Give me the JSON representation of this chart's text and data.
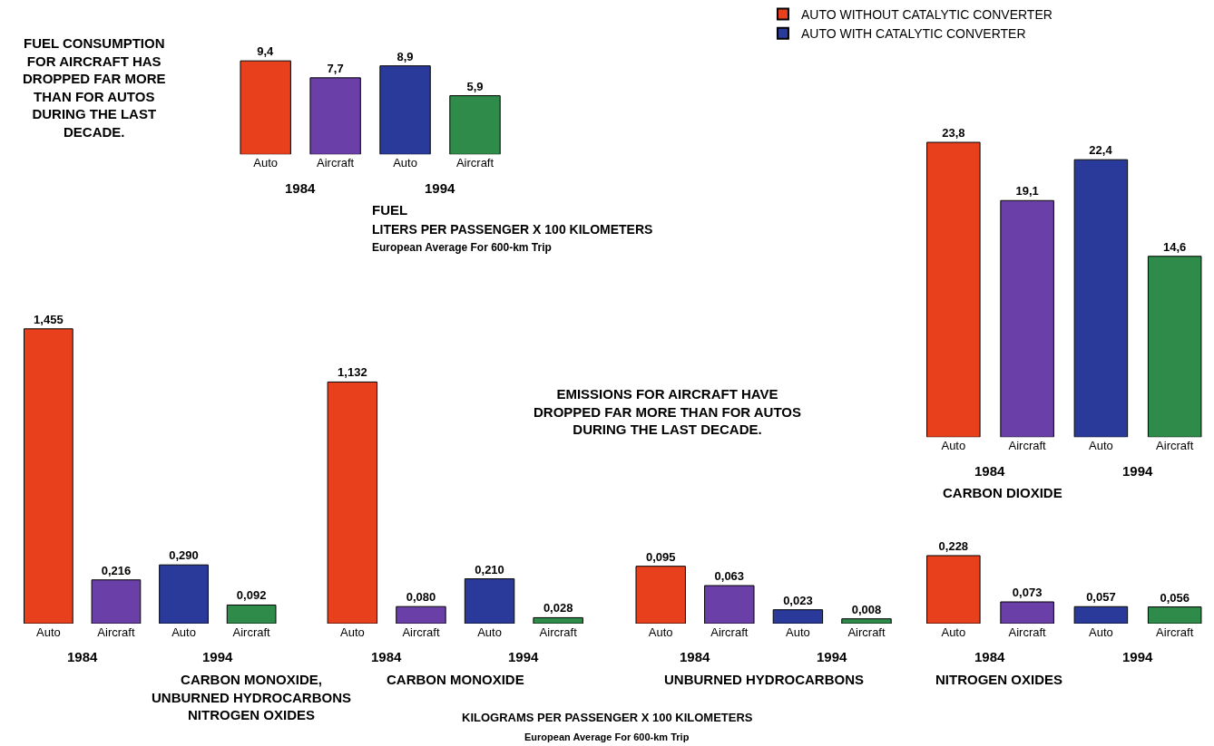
{
  "chart_data": [
    {
      "type": "other",
      "annotations": [
        "FUEL CONSUMPTION FOR AIRCRAFT HAS DROPPED FAR MORE THAN FOR AUTOS DURING THE LAST DECADE.",
        "EMISSIONS FOR AIRCRAFT HAVE DROPPED FAR MORE THAN FOR AUTOS DURING THE LAST DECADE.",
        "KILOGRAMS PER PASSENGER X 100 KILOMETERS",
        "European Average For 600-km Trip"
      ]
    },
    {
      "type": "bar",
      "title": "FUEL",
      "subtitle": "LITERS PER PASSENGER X 100 KILOMETERS",
      "annotations": [
        "1984",
        "1994",
        "European Average For 600-km Trip"
      ],
      "categories": [
        "Auto",
        "Aircraft",
        "Auto",
        "Aircraft"
      ],
      "values": [
        9.4,
        7.7,
        8.9,
        5.9
      ],
      "value_labels": [
        "9,4",
        "7,7",
        "8,9",
        "5,9"
      ],
      "colors": [
        "#e8401c",
        "#6a3fa8",
        "#2a3a9a",
        "#2e8b4a"
      ],
      "tick_labels": "x"
    },
    {
      "type": "bar",
      "title": "CARBON DIOXIDE",
      "annotations": [
        "1984",
        "1994"
      ],
      "categories": [
        "Auto",
        "Aircraft",
        "Auto",
        "Aircraft"
      ],
      "legend": "top left",
      "tick_labels": "x",
      "series": [
        {
          "name": "AUTO WITHOUT CATALYTIC CONVERTER",
          "color": "#e8401c",
          "values": [
            23.8,
            null,
            null,
            null
          ],
          "value_labels": [
            "23,8",
            null,
            null,
            null
          ]
        },
        {
          "color": "#6a3fa8",
          "values": [
            null,
            19.1,
            null,
            null
          ],
          "value_labels": [
            null,
            "19,1",
            null,
            null
          ]
        },
        {
          "name": "AUTO WITH CATALYTIC CONVERTER",
          "color": "#2a3a9a",
          "values": [
            null,
            null,
            22.4,
            null
          ],
          "value_labels": [
            null,
            null,
            "22,4",
            null
          ]
        },
        {
          "color": "#2e8b4a",
          "values": [
            null,
            null,
            null,
            14.6
          ],
          "value_labels": [
            null,
            null,
            null,
            "14,6"
          ]
        }
      ]
    },
    {
      "type": "bar",
      "title": "CARBON MONOXIDE, UNBURNED HYDROCARBONS NITROGEN OXIDES",
      "annotations": [
        "1984",
        "1994"
      ],
      "categories": [
        "Auto",
        "Aircraft",
        "Auto",
        "Aircraft"
      ],
      "values": [
        1.455,
        0.216,
        0.29,
        0.092
      ],
      "value_labels": [
        "1,455",
        "0,216",
        "0,290",
        "0,092"
      ],
      "colors": [
        "#e8401c",
        "#6a3fa8",
        "#2a3a9a",
        "#2e8b4a"
      ],
      "tick_labels": "x"
    },
    {
      "type": "bar",
      "title": "CARBON MONOXIDE",
      "annotations": [
        "1984",
        "1994"
      ],
      "categories": [
        "Auto",
        "Aircraft",
        "Auto",
        "Aircraft"
      ],
      "values": [
        1.132,
        0.08,
        0.21,
        0.028
      ],
      "value_labels": [
        "1,132",
        "0,080",
        "0,210",
        "0,028"
      ],
      "colors": [
        "#e8401c",
        "#6a3fa8",
        "#2a3a9a",
        "#2e8b4a"
      ],
      "tick_labels": "x"
    },
    {
      "type": "bar",
      "title": "UNBURNED HYDROCARBONS",
      "annotations": [
        "1984",
        "1994"
      ],
      "categories": [
        "Auto",
        "Aircraft",
        "Auto",
        "Aircraft"
      ],
      "values": [
        0.095,
        0.063,
        0.023,
        0.008
      ],
      "value_labels": [
        "0,095",
        "0,063",
        "0,023",
        "0,008"
      ],
      "colors": [
        "#e8401c",
        "#6a3fa8",
        "#2a3a9a",
        "#2e8b4a"
      ],
      "tick_labels": "x"
    },
    {
      "type": "bar",
      "title": "NITROGEN OXIDES",
      "annotations": [
        "1984",
        "1994"
      ],
      "categories": [
        "Auto",
        "Aircraft",
        "Auto",
        "Aircraft"
      ],
      "values": [
        0.228,
        0.073,
        0.057,
        0.056
      ],
      "value_labels": [
        "0,228",
        "0,073",
        "0,057",
        "0,056"
      ],
      "colors": [
        "#e8401c",
        "#6a3fa8",
        "#2a3a9a",
        "#2e8b4a"
      ],
      "tick_labels": "x"
    }
  ]
}
